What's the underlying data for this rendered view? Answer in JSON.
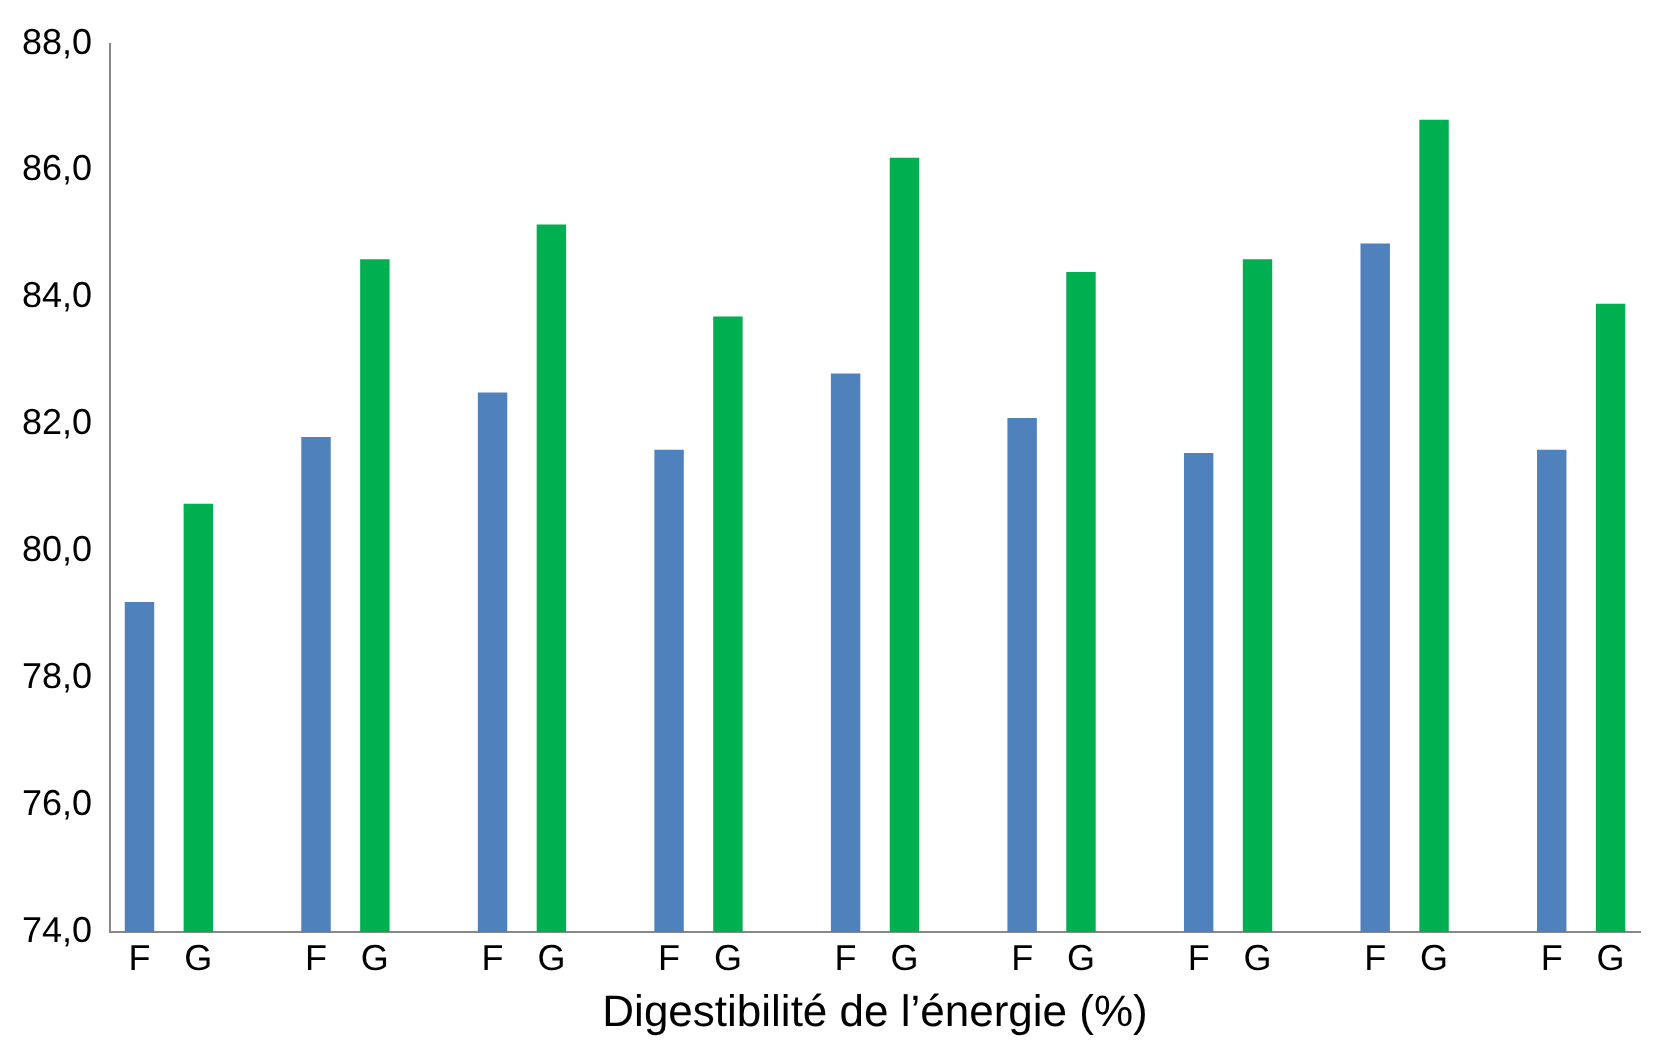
{
  "chart_data": {
    "type": "bar",
    "xlabel": "Digestibilité de l’énergie (%)",
    "categories": [
      "F",
      "G",
      null,
      "F",
      "G",
      null,
      "F",
      "G",
      null,
      "F",
      "G",
      null,
      "F",
      "G",
      null,
      "F",
      "G",
      null,
      "F",
      "G",
      null,
      "F",
      "G",
      null,
      "F",
      "G"
    ],
    "values": [
      79.2,
      80.75,
      null,
      81.8,
      84.6,
      null,
      82.5,
      85.15,
      null,
      81.6,
      83.7,
      null,
      82.8,
      86.2,
      null,
      82.1,
      84.4,
      null,
      81.55,
      84.6,
      null,
      84.85,
      86.8,
      null,
      81.6,
      83.9
    ],
    "colors": [
      "#4f81bd",
      "#00b050",
      null,
      "#4f81bd",
      "#00b050",
      null,
      "#4f81bd",
      "#00b050",
      null,
      "#4f81bd",
      "#00b050",
      null,
      "#4f81bd",
      "#00b050",
      null,
      "#4f81bd",
      "#00b050",
      null,
      "#4f81bd",
      "#00b050",
      null,
      "#4f81bd",
      "#00b050",
      null,
      "#4f81bd",
      "#00b050"
    ],
    "ylim": [
      74,
      88
    ],
    "yticks": [
      {
        "value": 74,
        "label": "74,0"
      },
      {
        "value": 76,
        "label": "76,0"
      },
      {
        "value": 78,
        "label": "78,0"
      },
      {
        "value": 80,
        "label": "80,0"
      },
      {
        "value": 82,
        "label": "82,0"
      },
      {
        "value": 84,
        "label": "84,0"
      },
      {
        "value": 86,
        "label": "86,0"
      },
      {
        "value": 88,
        "label": "88,0"
      }
    ],
    "grid": false,
    "legend": false
  }
}
